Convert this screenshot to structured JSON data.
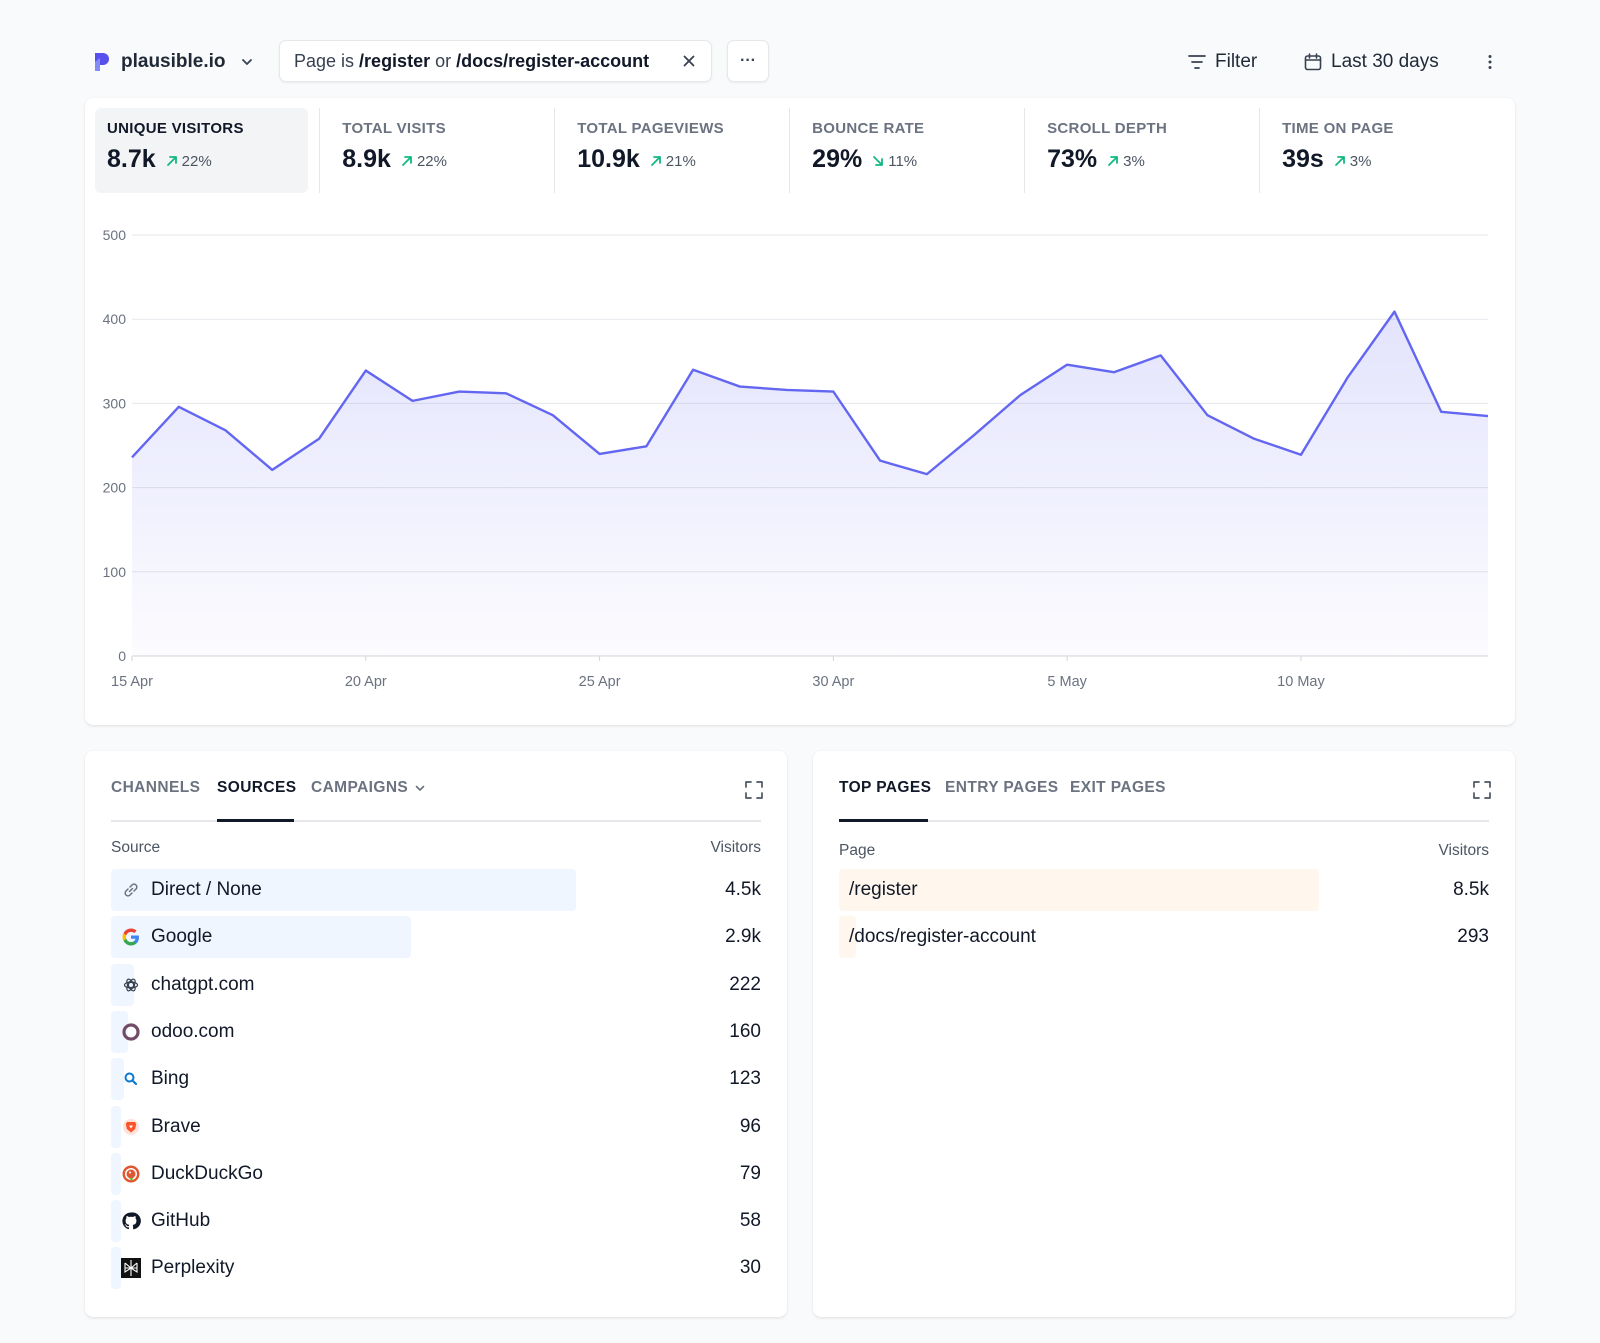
{
  "header": {
    "site_name": "plausible.io",
    "filter": {
      "prefix": "Page is",
      "value1": "/register",
      "joiner": "or",
      "value2": "/docs/register-account"
    },
    "more_label": "···",
    "filter_button": "Filter",
    "date_range": "Last 30 days"
  },
  "metrics": [
    {
      "label": "UNIQUE VISITORS",
      "value": "8.7k",
      "change": "22%",
      "direction": "up"
    },
    {
      "label": "TOTAL VISITS",
      "value": "8.9k",
      "change": "22%",
      "direction": "up"
    },
    {
      "label": "TOTAL PAGEVIEWS",
      "value": "10.9k",
      "change": "21%",
      "direction": "up"
    },
    {
      "label": "BOUNCE RATE",
      "value": "29%",
      "change": "11%",
      "direction": "down"
    },
    {
      "label": "SCROLL DEPTH",
      "value": "73%",
      "change": "3%",
      "direction": "up"
    },
    {
      "label": "TIME ON PAGE",
      "value": "39s",
      "change": "3%",
      "direction": "up"
    }
  ],
  "chart_data": {
    "type": "area",
    "x": [
      "15 Apr",
      "16 Apr",
      "17 Apr",
      "18 Apr",
      "19 Apr",
      "20 Apr",
      "21 Apr",
      "22 Apr",
      "23 Apr",
      "24 Apr",
      "25 Apr",
      "26 Apr",
      "27 Apr",
      "28 Apr",
      "29 Apr",
      "30 Apr",
      "1 May",
      "2 May",
      "3 May",
      "4 May",
      "5 May",
      "6 May",
      "7 May",
      "8 May",
      "9 May",
      "10 May",
      "11 May",
      "12 May",
      "13 May",
      "14 May"
    ],
    "xticks": [
      "15 Apr",
      "20 Apr",
      "25 Apr",
      "30 Apr",
      "5 May",
      "10 May"
    ],
    "series": [
      {
        "values": [
          236,
          296,
          268,
          221,
          258,
          339,
          303,
          314,
          312,
          286,
          240,
          249,
          340,
          320,
          316,
          314,
          232,
          216,
          262,
          310,
          346,
          337,
          357,
          286,
          258,
          239,
          331,
          409,
          290,
          285
        ]
      }
    ],
    "yticks": [
      0,
      100,
      200,
      300,
      400,
      500
    ],
    "ylim": [
      0,
      500
    ],
    "grid": true,
    "color": "#6366f1"
  },
  "sources": {
    "tabs": [
      {
        "label": "CHANNELS",
        "active": false
      },
      {
        "label": "SOURCES",
        "active": true
      },
      {
        "label": "CAMPAIGNS",
        "active": false
      }
    ],
    "col_source": "Source",
    "col_visitors": "Visitors",
    "rows": [
      {
        "name": "Direct / None",
        "value": "4.5k",
        "count": 4500,
        "icon": "link-icon"
      },
      {
        "name": "Google",
        "value": "2.9k",
        "count": 2900,
        "icon": "google-icon"
      },
      {
        "name": "chatgpt.com",
        "value": "222",
        "count": 222,
        "icon": "chatgpt-icon"
      },
      {
        "name": "odoo.com",
        "value": "160",
        "count": 160,
        "icon": "odoo-icon"
      },
      {
        "name": "Bing",
        "value": "123",
        "count": 123,
        "icon": "bing-icon"
      },
      {
        "name": "Brave",
        "value": "96",
        "count": 96,
        "icon": "brave-icon"
      },
      {
        "name": "DuckDuckGo",
        "value": "79",
        "count": 79,
        "icon": "duckduckgo-icon"
      },
      {
        "name": "GitHub",
        "value": "58",
        "count": 58,
        "icon": "github-icon"
      },
      {
        "name": "Perplexity",
        "value": "30",
        "count": 30,
        "icon": "perplexity-icon"
      }
    ],
    "bar_color": "#eff6ff"
  },
  "pages": {
    "tabs": [
      {
        "label": "TOP PAGES",
        "active": true
      },
      {
        "label": "ENTRY PAGES",
        "active": false
      },
      {
        "label": "EXIT PAGES",
        "active": false
      }
    ],
    "col_page": "Page",
    "col_visitors": "Visitors",
    "rows": [
      {
        "name": "/register",
        "value": "8.5k",
        "count": 8500
      },
      {
        "name": "/docs/register-account",
        "value": "293",
        "count": 293
      }
    ],
    "bar_color": "#fff7ed"
  }
}
